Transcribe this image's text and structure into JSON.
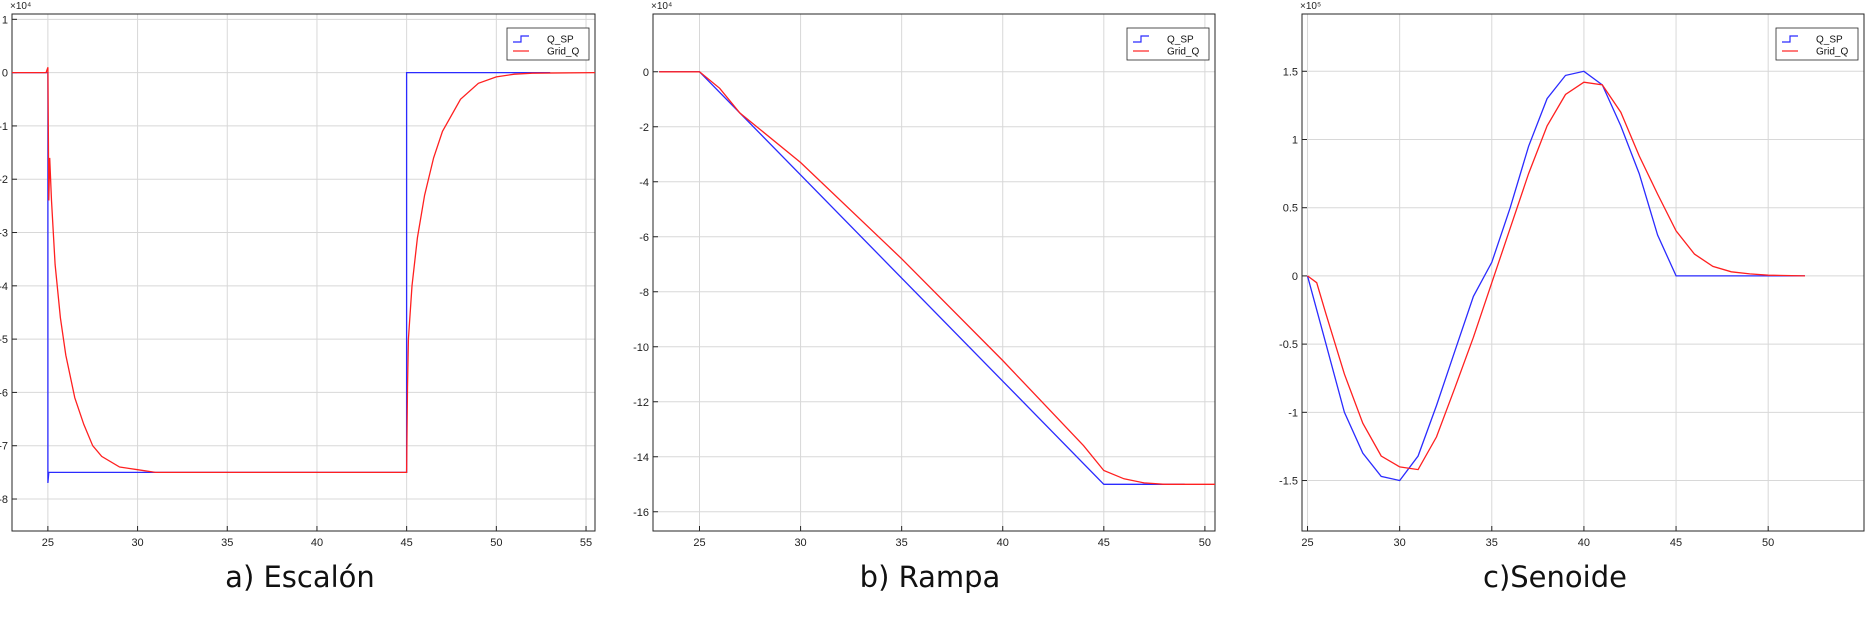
{
  "chart_data": [
    {
      "type": "line",
      "caption": "a) Escalón",
      "exponent_label": "×10⁴",
      "xlim": [
        23,
        55.5
      ],
      "ylim": [
        -8.6,
        1.1
      ],
      "xticks": [
        25,
        30,
        35,
        40,
        45,
        50,
        55
      ],
      "yticks": [
        1,
        0,
        -1,
        -2,
        -3,
        -4,
        -5,
        -6,
        -7,
        -8
      ],
      "grid": true,
      "legend_position": "top-right",
      "series": [
        {
          "name": "Q_SP",
          "color": "#2b2bff",
          "points": [
            [
              23,
              0
            ],
            [
              25,
              0
            ],
            [
              25,
              -7.7
            ],
            [
              25.05,
              -7.5
            ],
            [
              45,
              -7.5
            ],
            [
              45,
              0
            ],
            [
              53,
              0
            ]
          ]
        },
        {
          "name": "Grid_Q",
          "color": "#ff2020",
          "points": [
            [
              23,
              0
            ],
            [
              24.9,
              0
            ],
            [
              25,
              0.1
            ],
            [
              25.05,
              -2.4
            ],
            [
              25.1,
              -1.6
            ],
            [
              25.2,
              -2.4
            ],
            [
              25.4,
              -3.6
            ],
            [
              25.7,
              -4.6
            ],
            [
              26,
              -5.3
            ],
            [
              26.5,
              -6.1
            ],
            [
              27,
              -6.6
            ],
            [
              27.5,
              -7.0
            ],
            [
              28,
              -7.2
            ],
            [
              29,
              -7.4
            ],
            [
              30,
              -7.45
            ],
            [
              31,
              -7.5
            ],
            [
              45,
              -7.5
            ],
            [
              45.05,
              -5.9
            ],
            [
              45.1,
              -5.0
            ],
            [
              45.3,
              -4.0
            ],
            [
              45.6,
              -3.1
            ],
            [
              46,
              -2.3
            ],
            [
              46.5,
              -1.6
            ],
            [
              47,
              -1.1
            ],
            [
              48,
              -0.5
            ],
            [
              49,
              -0.2
            ],
            [
              50,
              -0.08
            ],
            [
              51,
              -0.03
            ],
            [
              52,
              -0.01
            ],
            [
              55.5,
              0
            ]
          ]
        }
      ]
    },
    {
      "type": "line",
      "caption": "b) Rampa",
      "exponent_label": "×10⁴",
      "xlim": [
        22.7,
        50.5
      ],
      "ylim": [
        -16.7,
        2.1
      ],
      "xticks": [
        25,
        30,
        35,
        40,
        45,
        50
      ],
      "yticks": [
        0,
        -2,
        -4,
        -6,
        -8,
        -10,
        -12,
        -14,
        -16
      ],
      "grid": true,
      "legend_position": "top-right",
      "series": [
        {
          "name": "Q_SP",
          "color": "#2b2bff",
          "points": [
            [
              23,
              0
            ],
            [
              25,
              0
            ],
            [
              45,
              -15
            ],
            [
              49,
              -15
            ]
          ]
        },
        {
          "name": "Grid_Q",
          "color": "#ff2020",
          "points": [
            [
              23,
              0
            ],
            [
              25,
              0
            ],
            [
              26,
              -0.6
            ],
            [
              27,
              -1.5
            ],
            [
              30,
              -3.3
            ],
            [
              35,
              -6.8
            ],
            [
              40,
              -10.5
            ],
            [
              44,
              -13.6
            ],
            [
              45,
              -14.5
            ],
            [
              46,
              -14.8
            ],
            [
              47,
              -14.95
            ],
            [
              48,
              -15
            ],
            [
              50.5,
              -15
            ]
          ]
        }
      ]
    },
    {
      "type": "line",
      "caption": "c)Senoide",
      "exponent_label": "×10⁵",
      "xlim": [
        24.7,
        55.2
      ],
      "ylim": [
        -1.87,
        1.92
      ],
      "xticks": [
        25,
        30,
        35,
        40,
        45,
        50
      ],
      "yticks": [
        1.5,
        1,
        0.5,
        0,
        -0.5,
        -1,
        -1.5
      ],
      "grid": true,
      "legend_position": "top-right",
      "series": [
        {
          "name": "Q_SP",
          "color": "#2b2bff",
          "points": [
            [
              25,
              0
            ],
            [
              26,
              -0.5
            ],
            [
              27,
              -1.0
            ],
            [
              28,
              -1.3
            ],
            [
              29,
              -1.47
            ],
            [
              30,
              -1.5
            ],
            [
              31,
              -1.32
            ],
            [
              32,
              -0.95
            ],
            [
              33,
              -0.55
            ],
            [
              34,
              -0.15
            ],
            [
              35,
              0.1
            ],
            [
              36,
              0.5
            ],
            [
              37,
              0.95
            ],
            [
              38,
              1.3
            ],
            [
              39,
              1.47
            ],
            [
              40,
              1.5
            ],
            [
              41,
              1.4
            ],
            [
              42,
              1.1
            ],
            [
              43,
              0.75
            ],
            [
              44,
              0.3
            ],
            [
              45,
              0
            ],
            [
              52,
              0
            ]
          ]
        },
        {
          "name": "Grid_Q",
          "color": "#ff2020",
          "points": [
            [
              25,
              0
            ],
            [
              25.5,
              -0.05
            ],
            [
              26,
              -0.28
            ],
            [
              27,
              -0.72
            ],
            [
              28,
              -1.08
            ],
            [
              29,
              -1.32
            ],
            [
              30,
              -1.4
            ],
            [
              31,
              -1.42
            ],
            [
              32,
              -1.18
            ],
            [
              33,
              -0.82
            ],
            [
              34,
              -0.45
            ],
            [
              35,
              -0.05
            ],
            [
              36,
              0.35
            ],
            [
              37,
              0.75
            ],
            [
              38,
              1.1
            ],
            [
              39,
              1.33
            ],
            [
              40,
              1.42
            ],
            [
              41,
              1.4
            ],
            [
              42,
              1.2
            ],
            [
              43,
              0.88
            ],
            [
              44,
              0.6
            ],
            [
              45,
              0.33
            ],
            [
              46,
              0.16
            ],
            [
              47,
              0.07
            ],
            [
              48,
              0.03
            ],
            [
              49,
              0.015
            ],
            [
              50,
              0.005
            ],
            [
              52,
              0
            ]
          ]
        }
      ]
    }
  ]
}
